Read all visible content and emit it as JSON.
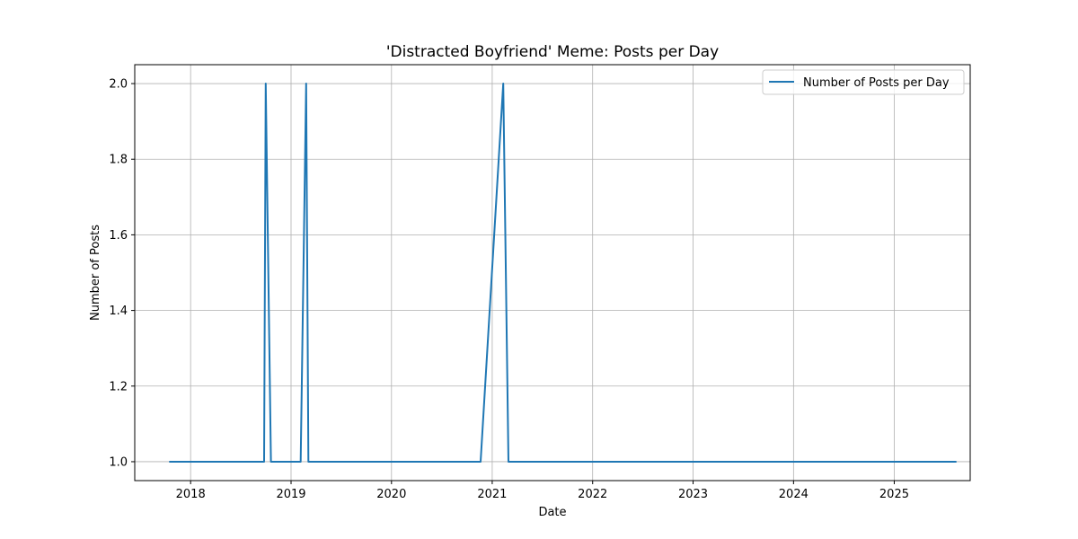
{
  "chart_data": {
    "type": "line",
    "title": "'Distracted Boyfriend' Meme: Posts per Day",
    "xlabel": "Date",
    "ylabel": "Number of Posts",
    "x_ticks": [
      "2018",
      "2019",
      "2020",
      "2021",
      "2022",
      "2023",
      "2024",
      "2025"
    ],
    "y_ticks": [
      "1.0",
      "1.2",
      "1.4",
      "1.6",
      "1.8",
      "2.0"
    ],
    "xlim": [
      "2017-06-12",
      "2025-10-04"
    ],
    "ylim": [
      0.95,
      2.05
    ],
    "grid": true,
    "legend_position": "top-right",
    "series": [
      {
        "name": "Number of Posts per Day",
        "color": "#1f77b4",
        "points": [
          {
            "x": "2017-10-15",
            "y": 1
          },
          {
            "x": "2018-09-25",
            "y": 1
          },
          {
            "x": "2018-10-01",
            "y": 2
          },
          {
            "x": "2018-10-20",
            "y": 1
          },
          {
            "x": "2019-02-05",
            "y": 1
          },
          {
            "x": "2019-02-25",
            "y": 2
          },
          {
            "x": "2019-03-05",
            "y": 1
          },
          {
            "x": "2019-03-25",
            "y": 1
          },
          {
            "x": "2020-11-20",
            "y": 1
          },
          {
            "x": "2021-02-10",
            "y": 2
          },
          {
            "x": "2021-03-01",
            "y": 1
          },
          {
            "x": "2025-08-15",
            "y": 1
          }
        ]
      }
    ]
  }
}
